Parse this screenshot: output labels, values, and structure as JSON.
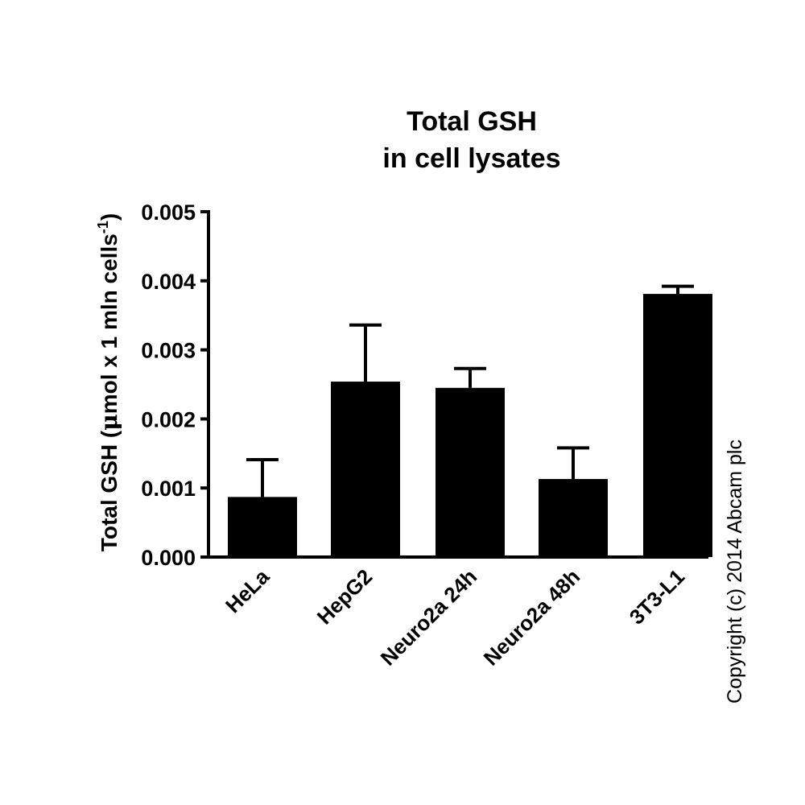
{
  "chart_data": {
    "type": "bar",
    "title": [
      "Total GSH",
      "in cell lysates"
    ],
    "ylabel_main": "Total GSH (",
    "ylabel_mu": "μ",
    "ylabel_rest": "mol x 1 mln cells",
    "ylabel_sup": "-1",
    "ylabel_close": ")",
    "categories": [
      "HeLa",
      "HepG2",
      "Neuro2a 24h",
      "Neuro2a 48h",
      "3T3-L1"
    ],
    "values": [
      0.00087,
      0.00254,
      0.00245,
      0.00113,
      0.00381
    ],
    "errors": [
      0.00054,
      0.00082,
      0.00028,
      0.00045,
      0.00011
    ],
    "ylim": [
      0,
      0.005
    ],
    "yticks": [
      "0.000",
      "0.001",
      "0.002",
      "0.003",
      "0.004",
      "0.005"
    ],
    "ytick_values": [
      0,
      0.001,
      0.002,
      0.003,
      0.004,
      0.005
    ],
    "bar_color": "#000000",
    "grid": false
  },
  "copyright": "Copyright (c) 2014 Abcam plc"
}
